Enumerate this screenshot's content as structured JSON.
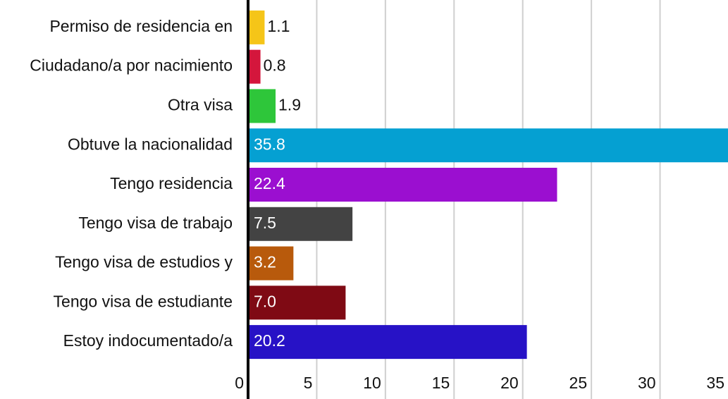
{
  "chart_data": {
    "type": "barh",
    "categories": [
      "Permiso de residencia en",
      "Ciudadano/a por nacimiento",
      "Otra visa",
      "Obtuve la nacionalidad",
      "Tengo residencia",
      "Tengo visa de trabajo",
      "Tengo visa de estudios y",
      "Tengo visa de estudiante",
      "Estoy indocumentado/a"
    ],
    "values": [
      1.1,
      0.8,
      1.9,
      35.8,
      22.4,
      7.5,
      3.2,
      7.0,
      20.2
    ],
    "value_labels": [
      "1.1",
      "0.8",
      "1.9",
      "35.8",
      "22.4",
      "7.5",
      "3.2",
      "7.0",
      "20.2"
    ],
    "colors": [
      "#f5c518",
      "#d4163c",
      "#2ec63a",
      "#05a0d2",
      "#9b0fd0",
      "#434343",
      "#b85a0c",
      "#7f0a14",
      "#2712c6"
    ],
    "xlim": [
      0,
      35
    ],
    "xticks": [
      0,
      5,
      10,
      15,
      20,
      25,
      30,
      35
    ],
    "grid": true
  }
}
